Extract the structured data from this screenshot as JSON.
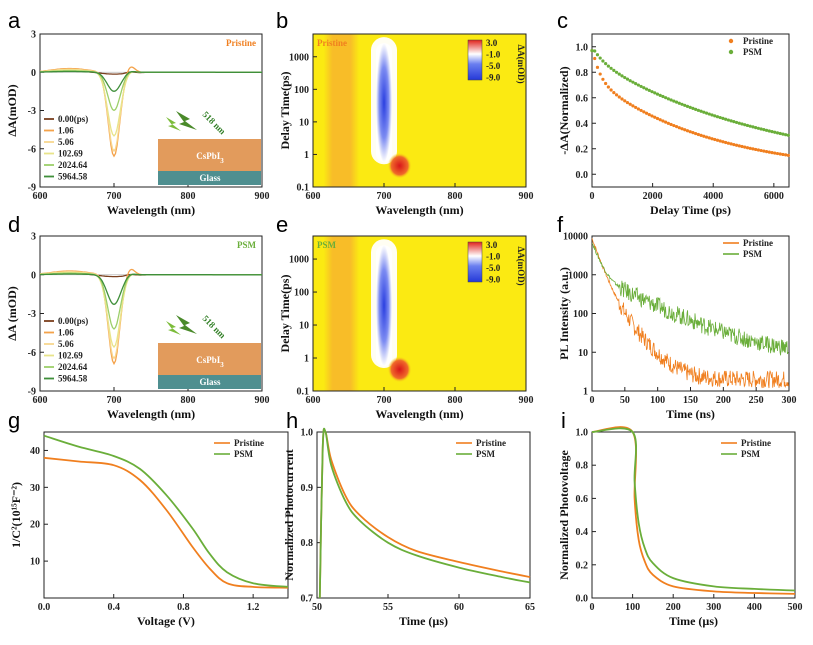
{
  "colors": {
    "orange": "#f07f1f",
    "green": "#6aae3a",
    "map_yellow": "#fbea12",
    "map_orange": "#f7b52c",
    "map_blue": "#2438d8",
    "map_red": "#e0221a",
    "inset_layer": "#e29b5c",
    "inset_glass": "#4f8f90"
  },
  "panel_labels": [
    "a",
    "b",
    "c",
    "d",
    "e",
    "f",
    "g",
    "h",
    "i"
  ],
  "chart_data": [
    {
      "id": "a",
      "type": "line",
      "xlabel": "Wavelength (nm)",
      "ylabel": "ΔA(mOD)",
      "xlim": [
        600,
        900
      ],
      "ylim": [
        -9,
        3
      ],
      "xticks": [
        "600",
        "700",
        "800",
        "900"
      ],
      "yticks": [
        "3",
        "0",
        "-3",
        "-6",
        "-9"
      ],
      "annotation": "Pristine",
      "legend_position": "bottom-left",
      "series": [
        {
          "name": "0.00(ps)",
          "color": "#7a3f1e",
          "min": -0.15,
          "width": 28
        },
        {
          "name": "1.06",
          "color": "#f4a24a",
          "min": -6.6,
          "width": 11
        },
        {
          "name": "5.06",
          "color": "#f8d78e",
          "min": -6.2,
          "width": 11
        },
        {
          "name": "102.69",
          "color": "#e8e48a",
          "min": -5.0,
          "width": 12
        },
        {
          "name": "2024.64",
          "color": "#9ccf6a",
          "min": -3.0,
          "width": 12
        },
        {
          "name": "5964.58",
          "color": "#3f8f3a",
          "min": -1.5,
          "width": 13
        }
      ],
      "inset": {
        "layer": "CsPbI",
        "layer_sub": "3",
        "substrate": "Glass",
        "light": "518 nm"
      }
    },
    {
      "id": "b",
      "type": "heatmap",
      "xlabel": "Wavelength (nm)",
      "ylabel": "Delay Time(ps)",
      "xlim": [
        600,
        900
      ],
      "ylim": [
        0.1,
        5000
      ],
      "y_scale": "log",
      "xticks": [
        "600",
        "700",
        "800",
        "900"
      ],
      "yticks": [
        "0.1",
        "1",
        "10",
        "100",
        "1000"
      ],
      "annotation": "Pristine",
      "colorbar": {
        "labels": [
          "3.0",
          "-1.0",
          "-5.0",
          "-9.0"
        ],
        "title": "ΔA(mOD)"
      }
    },
    {
      "id": "c",
      "type": "scatter",
      "xlabel": "Delay Time (ps)",
      "ylabel": "-ΔA(Normalized)",
      "xlim": [
        0,
        6500
      ],
      "ylim": [
        -0.1,
        1.1
      ],
      "xticks": [
        "0",
        "2000",
        "4000",
        "6000"
      ],
      "yticks": [
        "0.0",
        "0.2",
        "0.4",
        "0.6",
        "0.8",
        "1.0"
      ],
      "legend_position": "top-right",
      "series": [
        {
          "name": "Pristine",
          "color": "#f07f1f",
          "fast_amp": 0.25,
          "fast_tau": 250,
          "slow_amp": 0.75,
          "slow_tau": 4000
        },
        {
          "name": "PSM",
          "color": "#6aae3a",
          "fast_amp": 0.1,
          "fast_tau": 400,
          "slow_amp": 0.9,
          "slow_tau": 6000
        }
      ]
    },
    {
      "id": "d",
      "type": "line",
      "xlabel": "Wavelength (nm)",
      "ylabel": "ΔA (mOD)",
      "xlim": [
        600,
        900
      ],
      "ylim": [
        -9,
        3
      ],
      "xticks": [
        "600",
        "700",
        "800",
        "900"
      ],
      "yticks": [
        "3",
        "0",
        "-3",
        "-6",
        "-9"
      ],
      "annotation": "PSM",
      "legend_position": "bottom-left",
      "series": [
        {
          "name": "0.00(ps)",
          "color": "#7a3f1e",
          "min": -0.15,
          "width": 28
        },
        {
          "name": "1.06",
          "color": "#f4a24a",
          "min": -6.9,
          "width": 11
        },
        {
          "name": "5.06",
          "color": "#f8d78e",
          "min": -6.5,
          "width": 11
        },
        {
          "name": "102.69",
          "color": "#e8e48a",
          "min": -5.6,
          "width": 12
        },
        {
          "name": "2024.64",
          "color": "#9ccf6a",
          "min": -4.2,
          "width": 12
        },
        {
          "name": "5964.58",
          "color": "#3f8f3a",
          "min": -2.3,
          "width": 13
        }
      ],
      "inset": {
        "layer": "CsPbI",
        "layer_sub": "3",
        "substrate": "Glass",
        "light": "518 nm"
      }
    },
    {
      "id": "e",
      "type": "heatmap",
      "xlabel": "Wavelength (nm)",
      "ylabel": "Delay Time(ps)",
      "xlim": [
        600,
        900
      ],
      "ylim": [
        0.1,
        5000
      ],
      "y_scale": "log",
      "xticks": [
        "600",
        "700",
        "800",
        "900"
      ],
      "yticks": [
        "0.1",
        "1",
        "10",
        "100",
        "1000"
      ],
      "annotation": "PSM",
      "colorbar": {
        "labels": [
          "3.0",
          "-1.0",
          "-5.0",
          "-9.0"
        ],
        "title": "ΔA(mOD)"
      }
    },
    {
      "id": "f",
      "type": "line",
      "xlabel": "Time (ns)",
      "ylabel": "PL Intensity (a.u.)",
      "xlim": [
        0,
        300
      ],
      "ylim": [
        1,
        10000
      ],
      "y_scale": "log",
      "xticks": [
        "0",
        "50",
        "100",
        "150",
        "200",
        "250",
        "300"
      ],
      "yticks": [
        "1",
        "10",
        "100",
        "1000",
        "10000"
      ],
      "legend_position": "top-right",
      "series": [
        {
          "name": "Pristine",
          "color": "#f07f1f",
          "fast_amp": 8000,
          "fast_tau": 9,
          "slow_amp": 700,
          "slow_tau": 22,
          "floor": 2
        },
        {
          "name": "PSM",
          "color": "#6aae3a",
          "fast_amp": 6000,
          "fast_tau": 9,
          "slow_amp": 900,
          "slow_tau": 55,
          "floor": 9
        }
      ]
    },
    {
      "id": "g",
      "type": "line",
      "xlabel": "Voltage (V)",
      "ylabel": "1/C²(10¹⁵F⁻²)",
      "xlim": [
        0,
        1.4
      ],
      "ylim": [
        0,
        45
      ],
      "xticks": [
        "0.0",
        "0.4",
        "0.8",
        "1.2"
      ],
      "yticks": [
        "10",
        "20",
        "30",
        "40"
      ],
      "legend_position": "top-right",
      "series": [
        {
          "name": "Pristine",
          "color": "#f07f1f",
          "points": [
            [
              0,
              38
            ],
            [
              0.2,
              37
            ],
            [
              0.4,
              36
            ],
            [
              0.55,
              32
            ],
            [
              0.7,
              24
            ],
            [
              0.85,
              14
            ],
            [
              0.95,
              8
            ],
            [
              1.05,
              4
            ],
            [
              1.2,
              3
            ],
            [
              1.4,
              2.8
            ]
          ]
        },
        {
          "name": "PSM",
          "color": "#6aae3a",
          "points": [
            [
              0,
              44
            ],
            [
              0.2,
              41
            ],
            [
              0.4,
              38.5
            ],
            [
              0.55,
              35
            ],
            [
              0.7,
              28
            ],
            [
              0.85,
              19
            ],
            [
              0.95,
              12
            ],
            [
              1.05,
              7
            ],
            [
              1.2,
              4
            ],
            [
              1.4,
              3
            ]
          ]
        }
      ]
    },
    {
      "id": "h",
      "type": "line",
      "xlabel": "Time (µs)",
      "ylabel": "Normalized Photocurrent",
      "xlim": [
        50,
        65
      ],
      "ylim": [
        0.7,
        1.0
      ],
      "xticks": [
        "50",
        "55",
        "60",
        "65"
      ],
      "yticks": [
        "0.7",
        "0.8",
        "0.9",
        "1.0"
      ],
      "legend_position": "top-right",
      "series": [
        {
          "name": "Pristine",
          "color": "#f07f1f",
          "points": [
            [
              50.2,
              0.7
            ],
            [
              50.4,
              0.97
            ],
            [
              50.6,
              1.0
            ],
            [
              51,
              0.95
            ],
            [
              52,
              0.885
            ],
            [
              53,
              0.85
            ],
            [
              55,
              0.81
            ],
            [
              57,
              0.785
            ],
            [
              60,
              0.765
            ],
            [
              63,
              0.748
            ],
            [
              65,
              0.738
            ]
          ]
        },
        {
          "name": "PSM",
          "color": "#6aae3a",
          "points": [
            [
              50.2,
              0.7
            ],
            [
              50.4,
              0.97
            ],
            [
              50.6,
              1.0
            ],
            [
              51,
              0.94
            ],
            [
              52,
              0.875
            ],
            [
              53,
              0.84
            ],
            [
              55,
              0.8
            ],
            [
              57,
              0.777
            ],
            [
              60,
              0.755
            ],
            [
              63,
              0.738
            ],
            [
              65,
              0.728
            ]
          ]
        }
      ]
    },
    {
      "id": "i",
      "type": "line",
      "xlabel": "Time (µs)",
      "ylabel": "Normalized Photovoltage",
      "xlim": [
        0,
        500
      ],
      "ylim": [
        0,
        1.0
      ],
      "xticks": [
        "0",
        "100",
        "200",
        "300",
        "400",
        "500"
      ],
      "yticks": [
        "0.0",
        "0.2",
        "0.4",
        "0.6",
        "0.8",
        "1.0"
      ],
      "legend_position": "top-right",
      "series": [
        {
          "name": "Pristine",
          "color": "#f07f1f",
          "points": [
            [
              0,
              1.0
            ],
            [
              100,
              1.0
            ],
            [
              105,
              0.6
            ],
            [
              115,
              0.35
            ],
            [
              130,
              0.22
            ],
            [
              150,
              0.14
            ],
            [
              200,
              0.07
            ],
            [
              300,
              0.04
            ],
            [
              400,
              0.03
            ],
            [
              500,
              0.025
            ]
          ]
        },
        {
          "name": "PSM",
          "color": "#6aae3a",
          "points": [
            [
              0,
              1.0
            ],
            [
              100,
              1.0
            ],
            [
              105,
              0.7
            ],
            [
              115,
              0.45
            ],
            [
              130,
              0.3
            ],
            [
              150,
              0.21
            ],
            [
              200,
              0.12
            ],
            [
              300,
              0.07
            ],
            [
              400,
              0.055
            ],
            [
              500,
              0.045
            ]
          ]
        }
      ]
    }
  ]
}
